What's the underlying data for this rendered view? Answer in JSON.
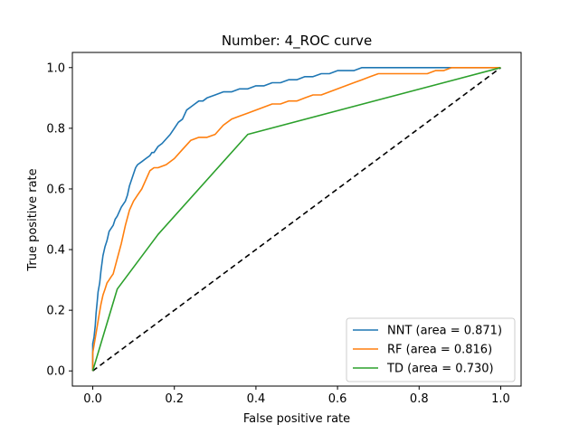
{
  "chart_data": {
    "type": "line",
    "title": "Number: 4_ROC curve",
    "xlabel": "False positive rate",
    "ylabel": "True positive rate",
    "xlim": [
      -0.05,
      1.05
    ],
    "ylim": [
      -0.05,
      1.05
    ],
    "x_ticks": [
      "0.0",
      "0.2",
      "0.4",
      "0.6",
      "0.8",
      "1.0"
    ],
    "y_ticks": [
      "0.0",
      "0.2",
      "0.4",
      "0.6",
      "0.8",
      "1.0"
    ],
    "grid": false,
    "legend_position": "lower-right",
    "series": [
      {
        "name": "NNT (area = 0.871)",
        "color": "#1f77b4",
        "style": "solid",
        "x": [
          0.0,
          0.0,
          0.003,
          0.006,
          0.008,
          0.011,
          0.013,
          0.017,
          0.02,
          0.025,
          0.03,
          0.035,
          0.04,
          0.05,
          0.055,
          0.06,
          0.07,
          0.08,
          0.085,
          0.09,
          0.1,
          0.105,
          0.11,
          0.12,
          0.13,
          0.14,
          0.145,
          0.15,
          0.16,
          0.17,
          0.19,
          0.2,
          0.21,
          0.22,
          0.23,
          0.24,
          0.25,
          0.26,
          0.27,
          0.28,
          0.3,
          0.32,
          0.34,
          0.36,
          0.38,
          0.4,
          0.42,
          0.44,
          0.46,
          0.48,
          0.5,
          0.52,
          0.54,
          0.56,
          0.58,
          0.6,
          0.62,
          0.64,
          0.66,
          0.68,
          0.7,
          0.72,
          0.75,
          0.8,
          0.85,
          0.88,
          0.92,
          0.96,
          1.0
        ],
        "y": [
          0.0,
          0.09,
          0.11,
          0.15,
          0.19,
          0.23,
          0.26,
          0.29,
          0.33,
          0.38,
          0.41,
          0.43,
          0.46,
          0.48,
          0.5,
          0.51,
          0.54,
          0.56,
          0.58,
          0.61,
          0.65,
          0.67,
          0.68,
          0.69,
          0.7,
          0.71,
          0.72,
          0.72,
          0.74,
          0.75,
          0.78,
          0.8,
          0.82,
          0.83,
          0.86,
          0.87,
          0.88,
          0.89,
          0.89,
          0.9,
          0.91,
          0.92,
          0.92,
          0.93,
          0.93,
          0.94,
          0.94,
          0.95,
          0.95,
          0.96,
          0.96,
          0.97,
          0.97,
          0.98,
          0.98,
          0.99,
          0.99,
          0.99,
          1.0,
          1.0,
          1.0,
          1.0,
          1.0,
          1.0,
          1.0,
          1.0,
          1.0,
          1.0,
          1.0
        ]
      },
      {
        "name": "RF (area = 0.816)",
        "color": "#ff7f0e",
        "style": "solid",
        "x": [
          0.0,
          0.0,
          0.005,
          0.01,
          0.015,
          0.02,
          0.025,
          0.03,
          0.035,
          0.04,
          0.045,
          0.05,
          0.06,
          0.07,
          0.08,
          0.09,
          0.1,
          0.11,
          0.12,
          0.13,
          0.14,
          0.15,
          0.16,
          0.18,
          0.2,
          0.22,
          0.24,
          0.26,
          0.28,
          0.3,
          0.32,
          0.34,
          0.36,
          0.38,
          0.4,
          0.42,
          0.44,
          0.46,
          0.48,
          0.5,
          0.52,
          0.54,
          0.56,
          0.58,
          0.6,
          0.62,
          0.64,
          0.66,
          0.68,
          0.7,
          0.72,
          0.74,
          0.76,
          0.78,
          0.8,
          0.82,
          0.84,
          0.86,
          0.88,
          0.9,
          0.95,
          1.0
        ],
        "y": [
          0.0,
          0.06,
          0.1,
          0.14,
          0.18,
          0.22,
          0.25,
          0.27,
          0.29,
          0.3,
          0.31,
          0.32,
          0.37,
          0.42,
          0.48,
          0.53,
          0.56,
          0.58,
          0.6,
          0.63,
          0.66,
          0.67,
          0.67,
          0.68,
          0.7,
          0.73,
          0.76,
          0.77,
          0.77,
          0.78,
          0.81,
          0.83,
          0.84,
          0.85,
          0.86,
          0.87,
          0.88,
          0.88,
          0.89,
          0.89,
          0.9,
          0.91,
          0.91,
          0.92,
          0.93,
          0.94,
          0.95,
          0.96,
          0.97,
          0.98,
          0.98,
          0.98,
          0.98,
          0.98,
          0.98,
          0.98,
          0.99,
          0.99,
          1.0,
          1.0,
          1.0,
          1.0
        ]
      },
      {
        "name": "TD (area = 0.730)",
        "color": "#2ca02c",
        "style": "solid",
        "x": [
          0.0,
          0.06,
          0.16,
          0.38,
          1.0
        ],
        "y": [
          0.0,
          0.27,
          0.45,
          0.78,
          1.0
        ]
      },
      {
        "name": "",
        "color": "#000000",
        "style": "dashed",
        "x": [
          0.0,
          1.0
        ],
        "y": [
          0.0,
          1.0
        ]
      }
    ]
  }
}
